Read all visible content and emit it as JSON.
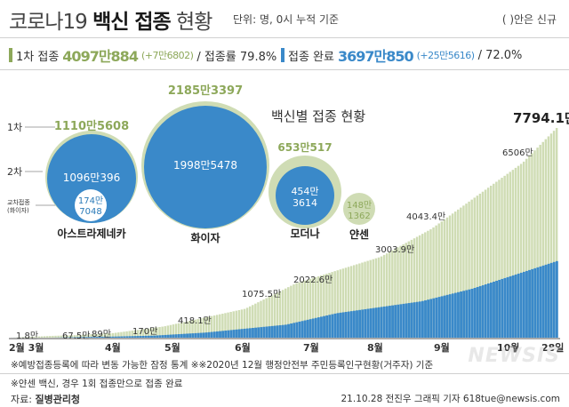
{
  "header": {
    "title_main": "코로나19",
    "title_bold": "백신 접종",
    "title_end": "현황",
    "units": "단위: 명, 0시 누적 기준",
    "note": "( )안은 신규"
  },
  "stats": {
    "first": {
      "label": "1차 접종",
      "value": "4097만884",
      "increase": "(+7만6802)",
      "rate_label": "/ 접종률 79.8%"
    },
    "complete": {
      "label": "접종 완료",
      "value": "3697만850",
      "increase": "(+25만5616)",
      "rate_label": "/ 72.0%"
    }
  },
  "colors": {
    "first": "#8da85a",
    "complete": "#3a89c9",
    "light_green": "#cfdcb4",
    "dark_blue": "#2a7ab8"
  },
  "bubble_chart": {
    "title": "백신별 접종 현황",
    "row_labels": {
      "first": "1차",
      "second": "2차",
      "cross": "교차접종",
      "cross_sub": "(화이자)"
    },
    "vaccines": [
      {
        "name": "아스트라제네카",
        "first": "1110만5608",
        "second": "1096만396",
        "cross_line1": "174만",
        "cross_line2": "7048"
      },
      {
        "name": "화이자",
        "first": "2185만3397",
        "second": "1998만5478"
      },
      {
        "name": "모더나",
        "first": "653만517",
        "second_line1": "454만",
        "second_line2": "3614"
      },
      {
        "name": "얀센",
        "first_line1": "148만",
        "first_line2": "1362"
      }
    ]
  },
  "chart_data": {
    "type": "area",
    "title": "코로나19 백신 접종 현황",
    "series": [
      {
        "name": "1차 접종",
        "color": "#8da85a"
      },
      {
        "name": "접종 완료",
        "color": "#3a89c9"
      }
    ],
    "x_labels": [
      "2월 3월",
      "4월",
      "5월",
      "6월",
      "7월",
      "8월",
      "9월",
      "10월",
      "28일"
    ],
    "cumulative_doses_10k": [
      {
        "x": 0,
        "label": "1.8만",
        "value": 1.8
      },
      {
        "x": 1.2,
        "label": "67.5만",
        "value": 67.5
      },
      {
        "x": 1.8,
        "label": "89만",
        "value": 89
      },
      {
        "x": 3,
        "label": "170만",
        "value": 170
      },
      {
        "x": 4.5,
        "label": "418.1만",
        "value": 418.1
      },
      {
        "x": 6.9,
        "label": "1075.5만",
        "value": 1075.5
      },
      {
        "x": 8.4,
        "label": "2022.6만",
        "value": 2022.6
      },
      {
        "x": 10.9,
        "label": "3003.9만",
        "value": 3003.9
      },
      {
        "x": 12.4,
        "label": "4043.4만",
        "value": 4043.4
      },
      {
        "x": 15.1,
        "label": "6506만",
        "value": 6506
      },
      {
        "x": 16.1,
        "label": "7794.1만",
        "value": 7794.1
      }
    ],
    "ylim": [
      0,
      8200
    ]
  },
  "footer": {
    "note1": "※예방접종등록에 따라 변동 가능한 잠정 통계  ※※2020년 12월 행정안전부 주민등록인구현황(거주자) 기준",
    "note2": "※얀센 백신, 경우 1회 접종만으로 접종 완료",
    "source_prefix": "자료:",
    "source_name": "질병관리청",
    "credit": "21.10.28 전진우 그래픽 기자 618tue@newsis.com",
    "logo": "NEWSIS"
  }
}
